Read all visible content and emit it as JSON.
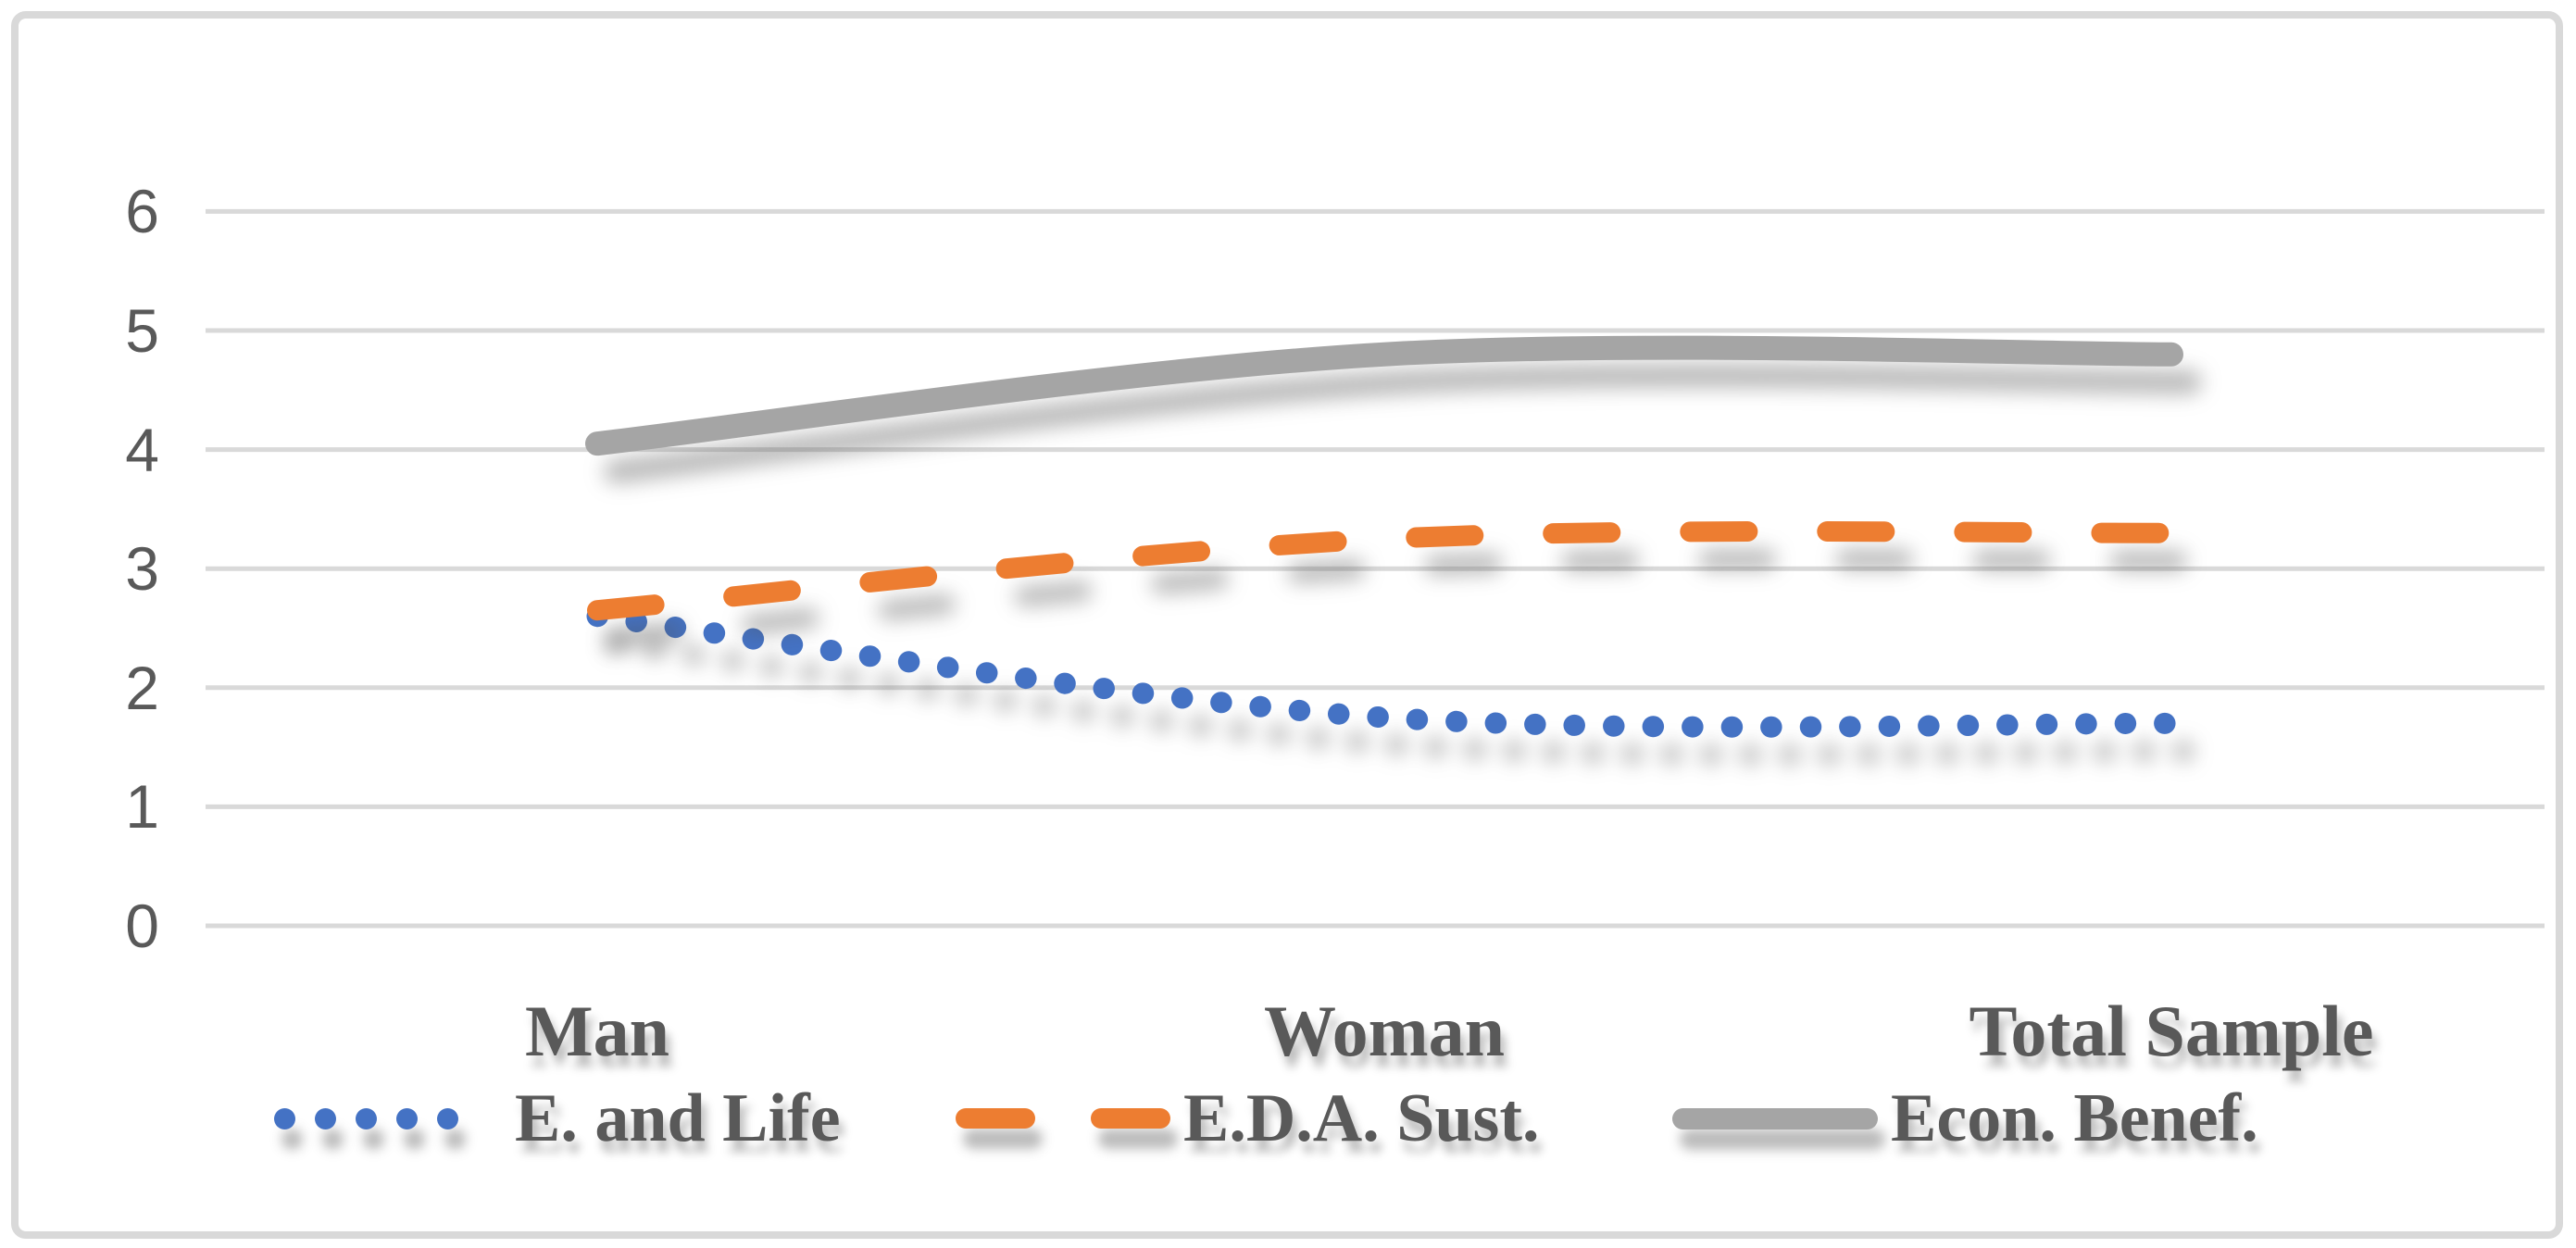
{
  "chart_data": {
    "type": "line",
    "categories": [
      "Man",
      "Woman",
      "Total Sample"
    ],
    "series": [
      {
        "name": "E. and Life",
        "color": "#4472C4",
        "style": "dotted",
        "values": [
          2.6,
          1.75,
          1.7
        ]
      },
      {
        "name": "E.D.A. Sust.",
        "color": "#ED7D31",
        "style": "dashed",
        "values": [
          2.65,
          3.25,
          3.3
        ]
      },
      {
        "name": "Econ. Benef.",
        "color": "#A5A5A5",
        "style": "solid",
        "values": [
          4.05,
          4.8,
          4.8
        ]
      }
    ],
    "title": "",
    "xlabel": "",
    "ylabel": "",
    "ylim": [
      0,
      6
    ],
    "yticks": [
      6,
      5,
      4,
      3,
      2,
      1,
      0
    ],
    "grid": true,
    "legend_position": "bottom",
    "smoothed": true
  },
  "theme": {
    "background": "#FFFFFF",
    "border_color": "#D9D9D9",
    "gridline_color": "#D9D9D9",
    "axis_text_color": "#595959",
    "label_text_color": "#595959"
  }
}
